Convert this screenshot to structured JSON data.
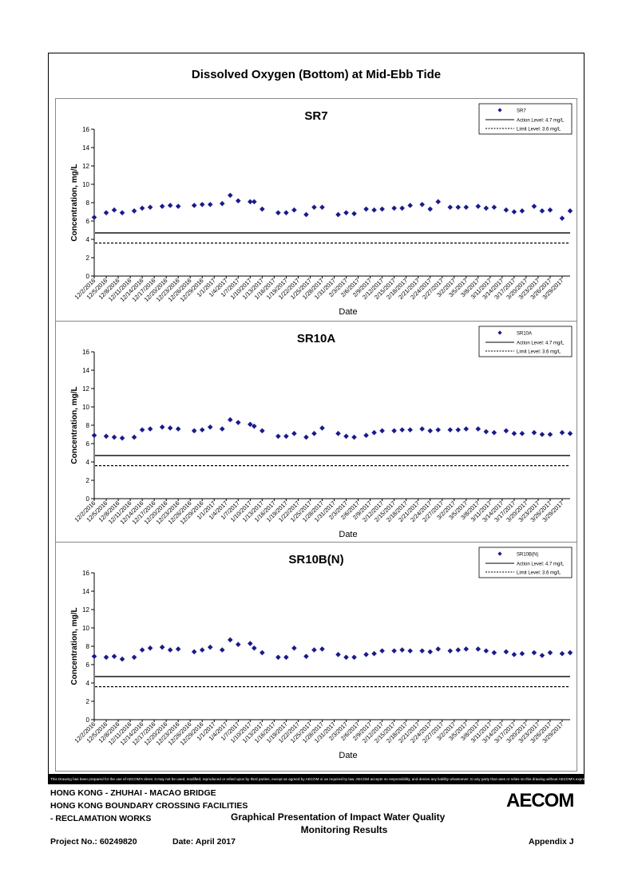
{
  "page": {
    "title": "Dissolved Oxygen (Bottom) at Mid-Ebb Tide"
  },
  "legend": {
    "action_label": "Action Level: 4.7 mg/L",
    "limit_label": "Limit Level: 3.6 mg/L"
  },
  "axes": {
    "ylabel": "Concentration, mg/L",
    "xlabel": "Date"
  },
  "dates": [
    "12/2/2016",
    "12/5/2016",
    "12/8/2016",
    "12/11/2016",
    "12/14/2016",
    "12/17/2016",
    "12/20/2016",
    "12/23/2016",
    "12/26/2016",
    "12/29/2016",
    "1/1/2017",
    "1/4/2017",
    "1/7/2017",
    "1/10/2017",
    "1/13/2017",
    "1/16/2017",
    "1/19/2017",
    "1/22/2017",
    "1/25/2017",
    "1/28/2017",
    "1/31/2017",
    "2/3/2017",
    "2/6/2017",
    "2/9/2017",
    "2/12/2017",
    "2/15/2017",
    "2/18/2017",
    "2/21/2017",
    "2/24/2017",
    "2/27/2017",
    "3/2/2017",
    "3/5/2017",
    "3/8/2017",
    "3/11/2017",
    "3/14/2017",
    "3/17/2017",
    "3/20/2017",
    "3/23/2017",
    "3/26/2017",
    "3/29/2017"
  ],
  "chart_data": [
    {
      "type": "scatter",
      "title": "SR7",
      "xlabel": "Date",
      "ylabel": "Concentration, mg/L",
      "ylim": [
        0,
        16
      ],
      "yticks": [
        0,
        2,
        4,
        6,
        8,
        10,
        12,
        14,
        16
      ],
      "xlim": [
        "12/2/2016",
        "3/31/2017"
      ],
      "legend_position": "top-right",
      "grid": false,
      "series": [
        {
          "name": "SR7",
          "color": "#1a1a8c",
          "x": [
            "12/2/2016",
            "12/5/2016",
            "12/7/2016",
            "12/9/2016",
            "12/12/2016",
            "12/14/2016",
            "12/16/2016",
            "12/19/2016",
            "12/21/2016",
            "12/23/2016",
            "12/27/2016",
            "12/29/2016",
            "12/31/2016",
            "1/3/2017",
            "1/5/2017",
            "1/7/2017",
            "1/10/2017",
            "1/11/2017",
            "1/13/2017",
            "1/17/2017",
            "1/19/2017",
            "1/21/2017",
            "1/24/2017",
            "1/26/2017",
            "1/28/2017",
            "2/1/2017",
            "2/3/2017",
            "2/5/2017",
            "2/8/2017",
            "2/10/2017",
            "2/12/2017",
            "2/15/2017",
            "2/17/2017",
            "2/19/2017",
            "2/22/2017",
            "2/24/2017",
            "2/26/2017",
            "3/1/2017",
            "3/3/2017",
            "3/5/2017",
            "3/8/2017",
            "3/10/2017",
            "3/12/2017",
            "3/15/2017",
            "3/17/2017",
            "3/19/2017",
            "3/22/2017",
            "3/24/2017",
            "3/26/2017",
            "3/29/2017",
            "3/31/2017"
          ],
          "values": [
            6.4,
            6.9,
            7.2,
            6.9,
            7.1,
            7.4,
            7.5,
            7.6,
            7.7,
            7.6,
            7.7,
            7.8,
            7.8,
            7.9,
            8.8,
            8.2,
            8.1,
            8.1,
            7.3,
            6.9,
            6.9,
            7.2,
            6.7,
            7.5,
            7.5,
            6.7,
            6.9,
            6.8,
            7.3,
            7.2,
            7.3,
            7.4,
            7.4,
            7.7,
            7.8,
            7.3,
            8.1,
            7.5,
            7.5,
            7.5,
            7.6,
            7.4,
            7.5,
            7.2,
            7.0,
            7.1,
            7.6,
            7.1,
            7.2,
            6.3,
            7.1
          ]
        },
        {
          "name": "Action Level: 4.7 mg/L",
          "value": 4.7
        },
        {
          "name": "Limit Level: 3.6 mg/L",
          "value": 3.6
        }
      ]
    },
    {
      "type": "scatter",
      "title": "SR10A",
      "xlabel": "Date",
      "ylabel": "Concentration, mg/L",
      "ylim": [
        0,
        16
      ],
      "yticks": [
        0,
        2,
        4,
        6,
        8,
        10,
        12,
        14,
        16
      ],
      "xlim": [
        "12/2/2016",
        "3/31/2017"
      ],
      "legend_position": "top-right",
      "grid": false,
      "series": [
        {
          "name": "SR10A",
          "color": "#1a1a8c",
          "x": [
            "12/2/2016",
            "12/5/2016",
            "12/7/2016",
            "12/9/2016",
            "12/12/2016",
            "12/14/2016",
            "12/16/2016",
            "12/19/2016",
            "12/21/2016",
            "12/23/2016",
            "12/27/2016",
            "12/29/2016",
            "12/31/2016",
            "1/3/2017",
            "1/5/2017",
            "1/7/2017",
            "1/10/2017",
            "1/11/2017",
            "1/13/2017",
            "1/17/2017",
            "1/19/2017",
            "1/21/2017",
            "1/24/2017",
            "1/26/2017",
            "1/28/2017",
            "2/1/2017",
            "2/3/2017",
            "2/5/2017",
            "2/8/2017",
            "2/10/2017",
            "2/12/2017",
            "2/15/2017",
            "2/17/2017",
            "2/19/2017",
            "2/22/2017",
            "2/24/2017",
            "2/26/2017",
            "3/1/2017",
            "3/3/2017",
            "3/5/2017",
            "3/8/2017",
            "3/10/2017",
            "3/12/2017",
            "3/15/2017",
            "3/17/2017",
            "3/19/2017",
            "3/22/2017",
            "3/24/2017",
            "3/26/2017",
            "3/29/2017",
            "3/31/2017"
          ],
          "values": [
            6.9,
            6.8,
            6.7,
            6.6,
            6.7,
            7.5,
            7.6,
            7.8,
            7.7,
            7.6,
            7.4,
            7.5,
            7.8,
            7.6,
            8.6,
            8.3,
            8.1,
            7.9,
            7.4,
            6.8,
            6.8,
            7.1,
            6.7,
            7.1,
            7.7,
            7.1,
            6.8,
            6.7,
            6.9,
            7.2,
            7.4,
            7.4,
            7.5,
            7.5,
            7.6,
            7.4,
            7.5,
            7.5,
            7.5,
            7.6,
            7.6,
            7.3,
            7.2,
            7.4,
            7.1,
            7.1,
            7.2,
            7.0,
            7.0,
            7.2,
            7.1
          ]
        },
        {
          "name": "Action Level: 4.7 mg/L",
          "value": 4.7
        },
        {
          "name": "Limit Level: 3.6 mg/L",
          "value": 3.6
        }
      ]
    },
    {
      "type": "scatter",
      "title": "SR10B(N)",
      "xlabel": "Date",
      "ylabel": "Concentration, mg/L",
      "ylim": [
        0,
        16
      ],
      "yticks": [
        0,
        2,
        4,
        6,
        8,
        10,
        12,
        14,
        16
      ],
      "xlim": [
        "12/2/2016",
        "3/31/2017"
      ],
      "legend_position": "top-right",
      "grid": false,
      "series": [
        {
          "name": "SR10B(N)",
          "color": "#1a1a8c",
          "x": [
            "12/2/2016",
            "12/5/2016",
            "12/7/2016",
            "12/9/2016",
            "12/12/2016",
            "12/14/2016",
            "12/16/2016",
            "12/19/2016",
            "12/21/2016",
            "12/23/2016",
            "12/27/2016",
            "12/29/2016",
            "12/31/2016",
            "1/3/2017",
            "1/5/2017",
            "1/7/2017",
            "1/10/2017",
            "1/11/2017",
            "1/13/2017",
            "1/17/2017",
            "1/19/2017",
            "1/21/2017",
            "1/24/2017",
            "1/26/2017",
            "1/28/2017",
            "2/1/2017",
            "2/3/2017",
            "2/5/2017",
            "2/8/2017",
            "2/10/2017",
            "2/12/2017",
            "2/15/2017",
            "2/17/2017",
            "2/19/2017",
            "2/22/2017",
            "2/24/2017",
            "2/26/2017",
            "3/1/2017",
            "3/3/2017",
            "3/5/2017",
            "3/8/2017",
            "3/10/2017",
            "3/12/2017",
            "3/15/2017",
            "3/17/2017",
            "3/19/2017",
            "3/22/2017",
            "3/24/2017",
            "3/26/2017",
            "3/29/2017",
            "3/31/2017"
          ],
          "values": [
            6.9,
            6.8,
            6.9,
            6.6,
            6.8,
            7.6,
            7.8,
            7.9,
            7.6,
            7.7,
            7.4,
            7.6,
            7.9,
            7.6,
            8.7,
            8.2,
            8.3,
            7.8,
            7.3,
            6.8,
            6.8,
            7.8,
            6.9,
            7.6,
            7.7,
            7.1,
            6.8,
            6.8,
            7.1,
            7.2,
            7.5,
            7.5,
            7.6,
            7.5,
            7.5,
            7.4,
            7.7,
            7.5,
            7.6,
            7.7,
            7.7,
            7.5,
            7.3,
            7.4,
            7.1,
            7.2,
            7.3,
            7.0,
            7.3,
            7.2,
            7.3
          ]
        },
        {
          "name": "Action Level: 4.7 mg/L",
          "value": 4.7
        },
        {
          "name": "Limit Level: 3.6 mg/L",
          "value": 3.6
        }
      ]
    }
  ],
  "disclaimer": "This Drawing has been prepared for the use of AECOM's client. It may not be used, modified, reproduced or relied upon by third parties, except as agreed by AECOM or as required by law. AECOM accepts no responsibility, and denies any liability whatsoever, to any party that uses or relies on this drawing without AECOM's express written consent.",
  "footer": {
    "project_line1": "HONG KONG - ZHUHAI - MACAO BRIDGE",
    "project_line2": "HONG KONG BOUNDARY CROSSING FACILITIES",
    "project_line3": "- RECLAMATION WORKS",
    "description_line1": "Graphical Presentation of Impact Water Quality",
    "description_line2": "Monitoring Results",
    "project_no": "Project No.: 60249820",
    "date": "Date: April 2017",
    "appendix": "Appendix J",
    "logo": "AECOM"
  }
}
